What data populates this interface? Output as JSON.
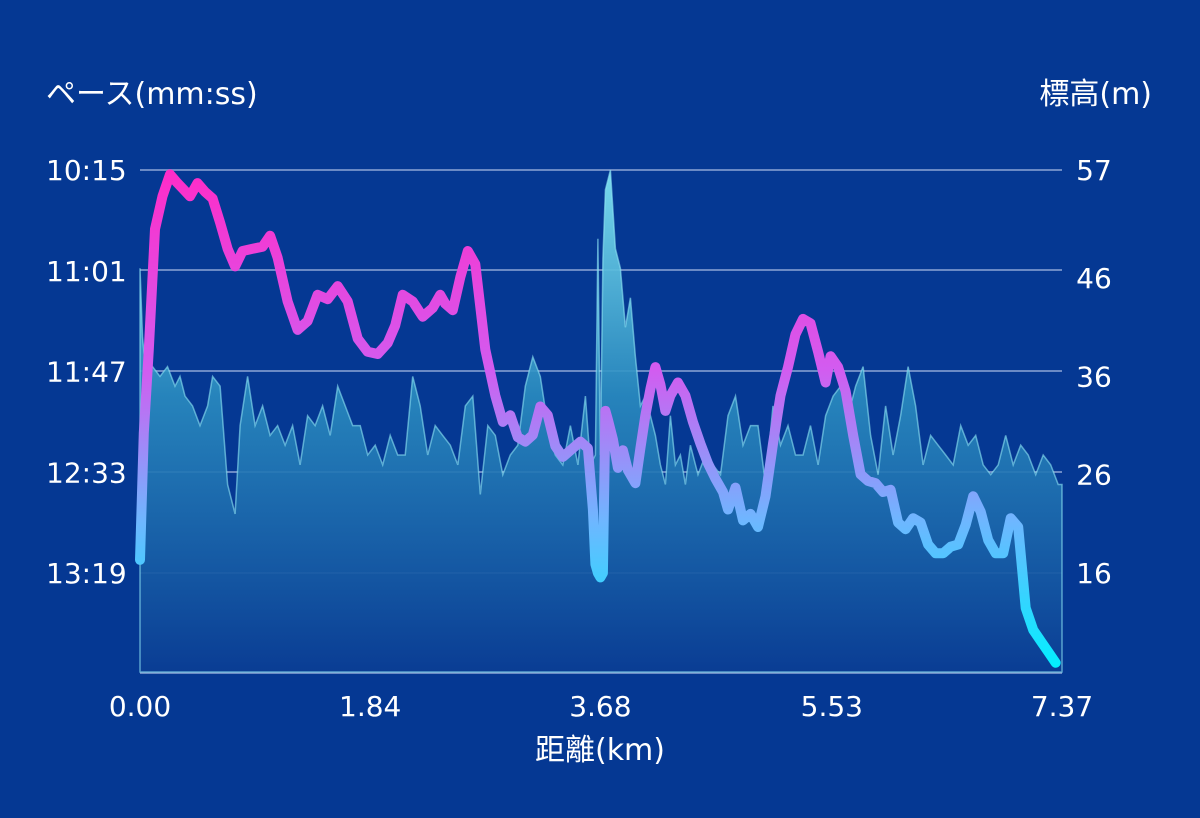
{
  "chart_data": {
    "type": "line",
    "title": "",
    "xlabel": "距離(km)",
    "ylabel_left": "ペース(mm:ss)",
    "ylabel_right": "標高(m)",
    "x_ticks": [
      "0.00",
      "1.84",
      "3.68",
      "5.53",
      "7.37"
    ],
    "x_tick_values": [
      0.0,
      1.84,
      3.68,
      5.53,
      7.37
    ],
    "xlim": [
      0,
      7.37
    ],
    "left_ticks": [
      "10:15",
      "11:01",
      "11:47",
      "12:33",
      "13:19"
    ],
    "left_tick_seconds": [
      615,
      661,
      707,
      753,
      799
    ],
    "left_axis_inverted": true,
    "right_ticks": [
      "57",
      "46",
      "36",
      "26",
      "16"
    ],
    "right_tick_values": [
      57,
      46,
      36,
      26,
      16
    ],
    "grid": true,
    "colors": {
      "background": "#053893",
      "grid": "#8ea6d6",
      "pace_fast": "#ff2cc8",
      "pace_slow": "#00f0ff",
      "elevation_top": "#7fe3f3",
      "elevation_bottom": "#0a3d94"
    },
    "series": [
      {
        "name": "",
        "kind": "pace",
        "x": [
          0.0,
          0.03,
          0.07,
          0.12,
          0.18,
          0.24,
          0.3,
          0.35,
          0.4,
          0.46,
          0.52,
          0.58,
          0.64,
          0.7,
          0.76,
          0.82,
          0.9,
          0.98,
          1.04,
          1.1,
          1.18,
          1.26,
          1.34,
          1.42,
          1.5,
          1.58,
          1.66,
          1.74,
          1.82,
          1.9,
          1.98,
          2.04,
          2.1,
          2.18,
          2.26,
          2.34,
          2.4,
          2.44,
          2.5,
          2.56,
          2.62,
          2.68,
          2.76,
          2.84,
          2.9,
          2.96,
          3.02,
          3.08,
          3.14,
          3.2,
          3.26,
          3.32,
          3.38,
          3.46,
          3.52,
          3.58,
          3.62,
          3.64,
          3.66,
          3.68,
          3.7,
          3.72,
          3.74,
          3.78,
          3.82,
          3.86,
          3.9,
          3.96,
          4.0,
          4.04,
          4.08,
          4.12,
          4.16,
          4.2,
          4.24,
          4.3,
          4.36,
          4.42,
          4.48,
          4.54,
          4.6,
          4.66,
          4.7,
          4.76,
          4.82,
          4.88,
          4.94,
          5.0,
          5.06,
          5.12,
          5.18,
          5.24,
          5.3,
          5.36,
          5.42,
          5.48,
          5.52,
          5.58,
          5.64,
          5.7,
          5.76,
          5.82,
          5.88,
          5.94,
          6.0,
          6.06,
          6.12,
          6.18,
          6.24,
          6.3,
          6.36,
          6.42,
          6.48,
          6.54,
          6.6,
          6.66,
          6.72,
          6.78,
          6.84,
          6.9,
          6.96,
          7.02,
          7.08,
          7.14,
          7.2,
          7.26,
          7.32,
          7.37
        ],
        "pace_seconds": [
          793,
          735,
          697,
          642,
          627,
          617,
          621,
          624,
          627,
          621,
          625,
          628,
          639,
          651,
          659,
          652,
          651,
          650,
          645,
          655,
          675,
          688,
          684,
          672,
          674,
          668,
          675,
          692,
          698,
          699,
          694,
          686,
          672,
          675,
          682,
          678,
          672,
          676,
          679,
          664,
          652,
          658,
          697,
          718,
          730,
          727,
          737,
          739,
          736,
          723,
          727,
          741,
          746,
          742,
          739,
          742,
          770,
          795,
          799,
          801,
          799,
          725,
          729,
          738,
          751,
          743,
          752,
          758,
          742,
          727,
          715,
          705,
          713,
          725,
          718,
          712,
          718,
          730,
          740,
          749,
          756,
          762,
          770,
          760,
          775,
          772,
          778,
          764,
          740,
          718,
          705,
          690,
          683,
          685,
          698,
          712,
          700,
          705,
          716,
          736,
          754,
          757,
          758,
          762,
          761,
          776,
          779,
          774,
          776,
          786,
          790,
          790,
          787,
          786,
          777,
          764,
          771,
          784,
          790,
          790,
          774,
          778,
          815,
          825,
          830,
          835,
          840
        ]
      },
      {
        "name": "",
        "kind": "elevation",
        "x": [
          0.0,
          0.02,
          0.05,
          0.1,
          0.16,
          0.22,
          0.28,
          0.32,
          0.36,
          0.42,
          0.48,
          0.54,
          0.58,
          0.64,
          0.7,
          0.76,
          0.8,
          0.86,
          0.92,
          0.98,
          1.04,
          1.1,
          1.16,
          1.22,
          1.28,
          1.34,
          1.4,
          1.46,
          1.52,
          1.58,
          1.64,
          1.7,
          1.76,
          1.82,
          1.88,
          1.94,
          2.0,
          2.06,
          2.12,
          2.18,
          2.24,
          2.3,
          2.36,
          2.42,
          2.48,
          2.54,
          2.6,
          2.66,
          2.72,
          2.78,
          2.84,
          2.9,
          2.96,
          3.02,
          3.08,
          3.14,
          3.2,
          3.26,
          3.32,
          3.38,
          3.44,
          3.5,
          3.56,
          3.6,
          3.64,
          3.66,
          3.68,
          3.7,
          3.72,
          3.76,
          3.8,
          3.84,
          3.88,
          3.92,
          3.96,
          4.0,
          4.04,
          4.08,
          4.12,
          4.16,
          4.2,
          4.24,
          4.28,
          4.32,
          4.36,
          4.4,
          4.46,
          4.52,
          4.58,
          4.64,
          4.7,
          4.76,
          4.82,
          4.88,
          4.94,
          5.0,
          5.06,
          5.12,
          5.18,
          5.24,
          5.3,
          5.36,
          5.42,
          5.48,
          5.54,
          5.6,
          5.66,
          5.72,
          5.78,
          5.84,
          5.9,
          5.96,
          6.02,
          6.08,
          6.14,
          6.2,
          6.26,
          6.32,
          6.38,
          6.44,
          6.5,
          6.56,
          6.62,
          6.68,
          6.74,
          6.8,
          6.86,
          6.92,
          6.98,
          7.04,
          7.1,
          7.16,
          7.22,
          7.28,
          7.34,
          7.37
        ],
        "elevation_m": [
          47,
          40,
          36,
          37,
          36,
          37,
          35,
          36,
          34,
          33,
          31,
          33,
          36,
          35,
          25,
          22,
          31,
          36,
          31,
          33,
          30,
          31,
          29,
          31,
          27,
          32,
          31,
          33,
          30,
          35,
          33,
          31,
          31,
          28,
          29,
          27,
          30,
          28,
          28,
          36,
          33,
          28,
          31,
          30,
          29,
          27,
          33,
          34,
          24,
          31,
          30,
          26,
          28,
          29,
          35,
          38,
          36,
          31,
          28,
          27,
          31,
          27,
          34,
          27,
          28,
          50,
          28,
          48,
          55,
          57,
          49,
          47,
          41,
          44,
          38,
          33,
          34,
          32,
          30,
          27,
          25,
          32,
          27,
          28,
          25,
          29,
          26,
          28,
          27,
          26,
          32,
          34,
          29,
          31,
          31,
          25,
          33,
          29,
          31,
          28,
          28,
          31,
          27,
          32,
          34,
          35,
          32,
          35,
          37,
          30,
          26,
          33,
          28,
          32,
          37,
          33,
          27,
          30,
          29,
          28,
          27,
          31,
          29,
          30,
          27,
          26,
          27,
          30,
          27,
          29,
          28,
          26,
          28,
          27,
          25,
          25
        ]
      }
    ]
  }
}
